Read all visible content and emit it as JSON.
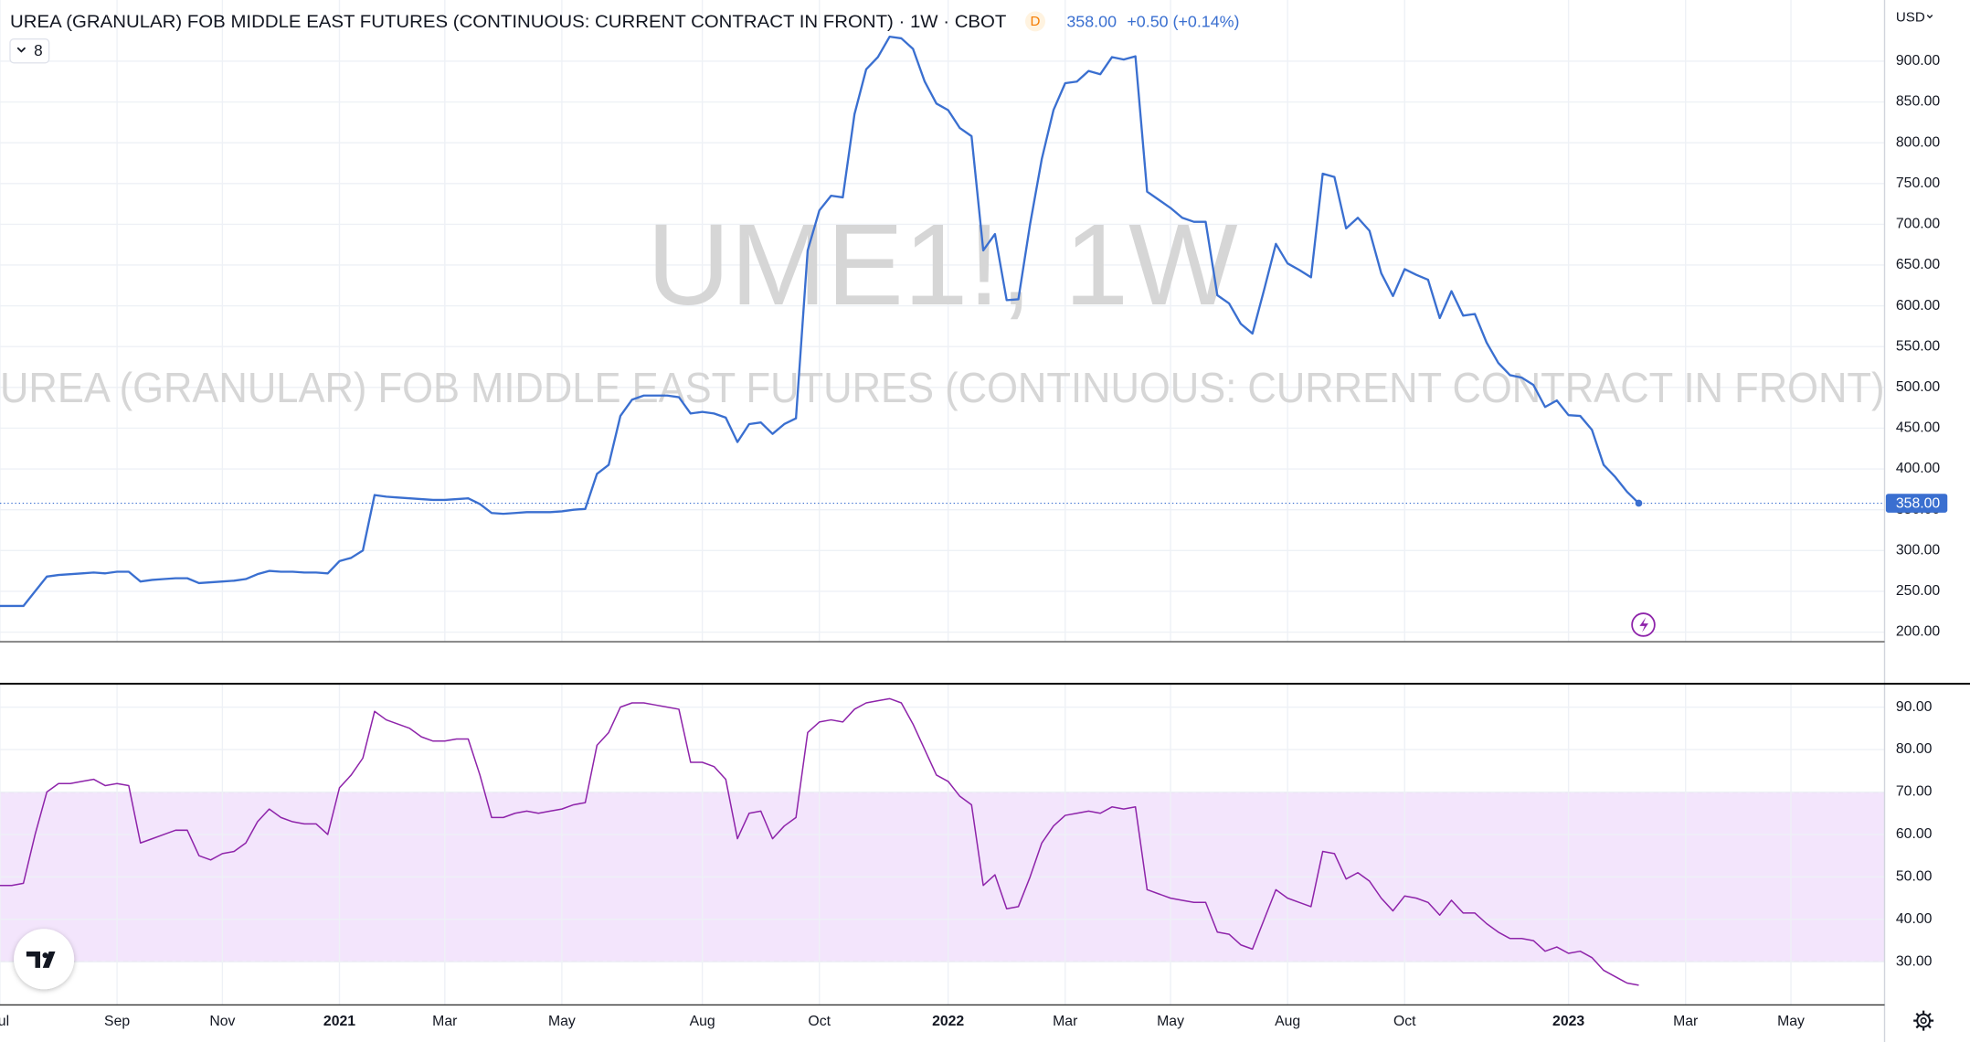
{
  "toolbar": {
    "interval_badge": "D",
    "last": "358.00",
    "change": "+0.50 (+0.14%)",
    "currency": "USD",
    "indicator_count": "8"
  },
  "watermark": {
    "symbol": "UME1!, 1W",
    "description": "UREA (GRANULAR) FOB MIDDLE EAST FUTURES (CONTINUOUS: CURRENT CONTRACT IN FRONT)"
  },
  "chart_data": [
    {
      "type": "line",
      "title": "UREA (GRANULAR) FOB MIDDLE EAST FUTURES (CONTINUOUS: CURRENT CONTRACT IN FRONT) · 1W · CBOT",
      "categories": [
        "Jul",
        null,
        null,
        null,
        null,
        null,
        null,
        null,
        null,
        null,
        "Sep",
        null,
        null,
        null,
        null,
        null,
        null,
        null,
        null,
        "Nov",
        null,
        null,
        null,
        null,
        null,
        null,
        null,
        null,
        null,
        "2021",
        null,
        null,
        null,
        null,
        null,
        null,
        null,
        null,
        "Mar",
        null,
        null,
        null,
        null,
        null,
        null,
        null,
        null,
        null,
        "May",
        null,
        null,
        null,
        null,
        null,
        null,
        null,
        null,
        null,
        null,
        null,
        "Aug",
        null,
        null,
        null,
        null,
        null,
        null,
        null,
        null,
        null,
        "Oct",
        null,
        null,
        null,
        null,
        null,
        null,
        null,
        null,
        null,
        null,
        "2022",
        null,
        null,
        null,
        null,
        null,
        null,
        null,
        null,
        null,
        "Mar",
        null,
        null,
        null,
        null,
        null,
        null,
        null,
        null,
        "May",
        null,
        null,
        null,
        null,
        null,
        null,
        null,
        null,
        null,
        "Aug",
        null,
        null,
        null,
        null,
        null,
        null,
        null,
        null,
        null,
        "Oct",
        null,
        null,
        null,
        null,
        null,
        null,
        null,
        null,
        null,
        null,
        null,
        null,
        null,
        "2023",
        null,
        null,
        null,
        null,
        null,
        null,
        null,
        null,
        null,
        "Mar",
        null,
        null,
        null,
        null,
        null,
        null,
        null,
        null,
        "May",
        null,
        null,
        null,
        null,
        null,
        null,
        null
      ],
      "values": [
        232,
        232,
        232,
        250,
        268,
        270,
        271,
        272,
        273,
        272,
        274,
        274,
        262,
        264,
        265,
        266,
        266,
        260,
        261,
        262,
        263,
        265,
        271,
        275,
        274,
        274,
        273,
        273,
        272,
        287,
        291,
        300,
        368,
        366,
        365,
        364,
        363,
        362,
        362,
        363,
        364,
        357,
        346,
        345,
        346,
        347,
        347,
        347,
        348,
        350,
        351,
        394,
        405,
        465,
        485,
        490,
        490,
        490,
        488,
        468,
        470,
        468,
        463,
        433,
        455,
        457,
        443,
        455,
        462,
        668,
        717,
        735,
        733,
        835,
        890,
        905,
        930,
        928,
        915,
        875,
        848,
        840,
        818,
        808,
        668,
        688,
        607,
        608,
        700,
        780,
        840,
        873,
        875,
        888,
        884,
        905,
        902,
        906,
        740,
        730,
        720,
        708,
        703,
        703,
        613,
        603,
        578,
        566,
        620,
        676,
        652,
        644,
        635,
        762,
        758,
        695,
        708,
        692,
        640,
        612,
        645,
        638,
        632,
        585,
        618,
        588,
        590,
        555,
        530,
        515,
        512,
        503,
        476,
        484,
        466,
        465,
        448,
        405,
        390,
        372,
        358,
        null,
        null,
        null,
        null,
        null,
        null,
        null,
        null,
        null,
        null,
        null,
        null,
        null,
        null,
        null,
        null,
        null,
        null,
        null,
        null
      ],
      "color": "#3a6fd0",
      "ylim": [
        189,
        975
      ],
      "yticks": [
        {
          "value": 200,
          "label": "200.00"
        },
        {
          "value": 250,
          "label": "250.00"
        },
        {
          "value": 300,
          "label": "300.00"
        },
        {
          "value": 350,
          "label": "350.00"
        },
        {
          "value": 400,
          "label": "400.00"
        },
        {
          "value": 450,
          "label": "450.00"
        },
        {
          "value": 500,
          "label": "500.00"
        },
        {
          "value": 550,
          "label": "550.00"
        },
        {
          "value": 600,
          "label": "600.00"
        },
        {
          "value": 650,
          "label": "650.00"
        },
        {
          "value": 700,
          "label": "700.00"
        },
        {
          "value": 750,
          "label": "750.00"
        },
        {
          "value": 800,
          "label": "800.00"
        },
        {
          "value": 850,
          "label": "850.00"
        },
        {
          "value": 900,
          "label": "900.00"
        }
      ],
      "grid": true
    },
    {
      "type": "line",
      "values": [
        48,
        48,
        48.5,
        60,
        70,
        72,
        72,
        72.5,
        73,
        71.5,
        72,
        71.5,
        58,
        59,
        60,
        61,
        61,
        55,
        54,
        55.5,
        56,
        58,
        63,
        66,
        64,
        63,
        62.5,
        62.5,
        60,
        71,
        74,
        78,
        89,
        87,
        86,
        85,
        83,
        82,
        82,
        82.5,
        82.5,
        74,
        64,
        64,
        65,
        65.5,
        65,
        65.5,
        66,
        67,
        67.5,
        81,
        84,
        90,
        91,
        91,
        90.5,
        90,
        89.5,
        77,
        77,
        76,
        73,
        59,
        65,
        65.5,
        59,
        62,
        64,
        84,
        86.5,
        87,
        86.5,
        89.5,
        91,
        91.5,
        92,
        91,
        86,
        80,
        74,
        72.5,
        69,
        67,
        48,
        50.5,
        42.5,
        43,
        50,
        58,
        62,
        64.5,
        65,
        65.5,
        65,
        66.5,
        66,
        66.5,
        47,
        46,
        45,
        44.5,
        44,
        44,
        37,
        36.5,
        34,
        33,
        40,
        47,
        45,
        44,
        43,
        56,
        55.5,
        49.5,
        51,
        49,
        45,
        42,
        45.5,
        45,
        44,
        41,
        44.5,
        41.5,
        41.5,
        39,
        37,
        35.5,
        35.5,
        35,
        32.5,
        33.5,
        32,
        32.5,
        31,
        28,
        26.5,
        25,
        24.5,
        null,
        null,
        null,
        null,
        null,
        null,
        null,
        null,
        null,
        null,
        null,
        null,
        null,
        null,
        null,
        null,
        null,
        null,
        null,
        null
      ],
      "color": "#8e24aa",
      "ylim": [
        20,
        95.5
      ],
      "yticks": [
        {
          "value": 30,
          "label": "30.00"
        },
        {
          "value": 40,
          "label": "40.00"
        },
        {
          "value": 50,
          "label": "50.00"
        },
        {
          "value": 60,
          "label": "60.00"
        },
        {
          "value": 70,
          "label": "70.00"
        },
        {
          "value": 80,
          "label": "80.00"
        },
        {
          "value": 90,
          "label": "90.00"
        }
      ],
      "bands": [
        30,
        70
      ],
      "band_color": "#f3e5fc",
      "grid": true
    }
  ]
}
